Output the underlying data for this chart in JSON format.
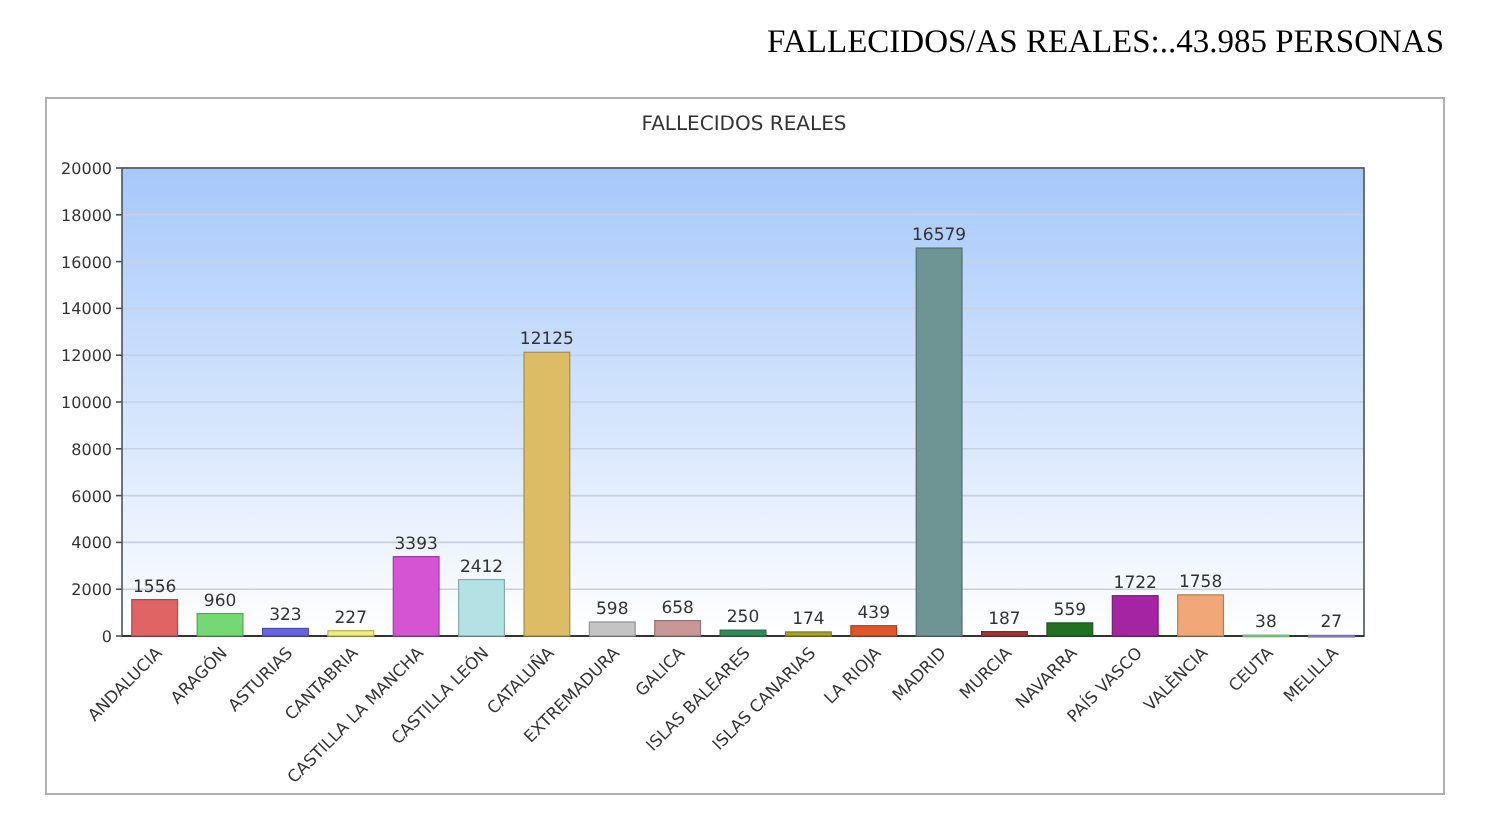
{
  "chart_data": {
    "type": "bar",
    "title": "FALLECIDOS/AS REALES:..43.985 PERSONAS",
    "subtitle": "FALLECIDOS REALES",
    "categories": [
      "ANDALUCIA",
      "ARAGÓN",
      "ASTURIAS",
      "CANTABRIA",
      "CASTILLA LA MANCHA",
      "CASTILLA LEÓN",
      "CATALUÑA",
      "EXTREMADURA",
      "GALICA",
      "ISLAS BALEARES",
      "ISLAS CANARIAS",
      "LA RIOJA",
      "MADRID",
      "MURCIA",
      "NAVARRA",
      "PAÍS VASCO",
      "VALÈNCIA",
      "CEUTA",
      "MELILLA"
    ],
    "values": [
      1556,
      960,
      323,
      227,
      3393,
      2412,
      12125,
      598,
      658,
      250,
      174,
      439,
      16579,
      187,
      559,
      1722,
      1758,
      38,
      27
    ],
    "colors": [
      "#e06464",
      "#74d874",
      "#6464e4",
      "#f0ee78",
      "#d454d4",
      "#b4e2e4",
      "#dcbc64",
      "#c4c4c4",
      "#c89898",
      "#2e8b5a",
      "#a8a424",
      "#e0562a",
      "#6e9494",
      "#a43434",
      "#227022",
      "#a424a4",
      "#f0a878",
      "#94f094",
      "#9898f0"
    ],
    "ylim": [
      0,
      20000
    ],
    "yticks": [
      0,
      2000,
      4000,
      6000,
      8000,
      10000,
      12000,
      14000,
      16000,
      18000,
      20000
    ],
    "grid": "y",
    "data_labels": true
  }
}
